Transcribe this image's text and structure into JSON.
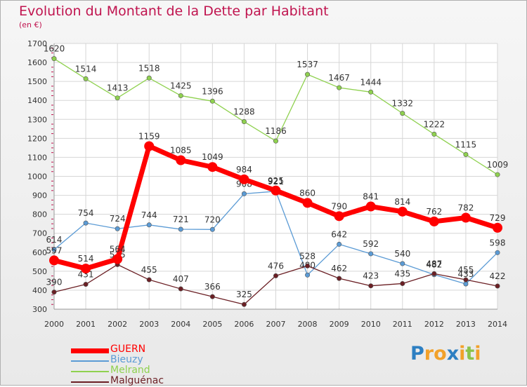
{
  "title": "Evolution du Montant de la Dette par Habitant",
  "subtitle": "(en €)",
  "logo": {
    "text": [
      "P",
      "r",
      "o",
      "x",
      "i",
      "t",
      "i"
    ],
    "colors": [
      "#2d7fc2",
      "#f2a12a",
      "#f2a12a",
      "#2d7fc2",
      "#f2a12a",
      "#8bc34a",
      "#f2a12a"
    ]
  },
  "chart_data": {
    "type": "line",
    "x": [
      2000,
      2001,
      2002,
      2003,
      2004,
      2005,
      2006,
      2007,
      2008,
      2009,
      2010,
      2011,
      2012,
      2013,
      2014
    ],
    "ylim": [
      300,
      1700
    ],
    "yticks": [
      300,
      400,
      500,
      600,
      700,
      800,
      900,
      1000,
      1100,
      1200,
      1300,
      1400,
      1500,
      1600,
      1700
    ],
    "grid": true,
    "legend_position": "bottom-left",
    "series": [
      {
        "name": "Melrand",
        "color": "#8fd14f",
        "values": [
          1620,
          1514,
          1413,
          1518,
          1425,
          1396,
          1288,
          1186,
          1537,
          1467,
          1444,
          1332,
          1222,
          1115,
          1009
        ]
      },
      {
        "name": "Bieuzy",
        "color": "#5b9bd5",
        "values": [
          614,
          754,
          724,
          744,
          721,
          720,
          908,
          921,
          480,
          642,
          592,
          540,
          482,
          433,
          598
        ]
      },
      {
        "name": "Malguénac",
        "color": "#6b1f24",
        "values": [
          390,
          431,
          535,
          455,
          407,
          366,
          325,
          476,
          528,
          462,
          423,
          435,
          487,
          455,
          422
        ]
      },
      {
        "name": "GUERN",
        "color": "#ff0000",
        "values": [
          557,
          514,
          564,
          1159,
          1085,
          1049,
          984,
          925,
          860,
          790,
          841,
          814,
          762,
          782,
          729
        ]
      }
    ]
  }
}
